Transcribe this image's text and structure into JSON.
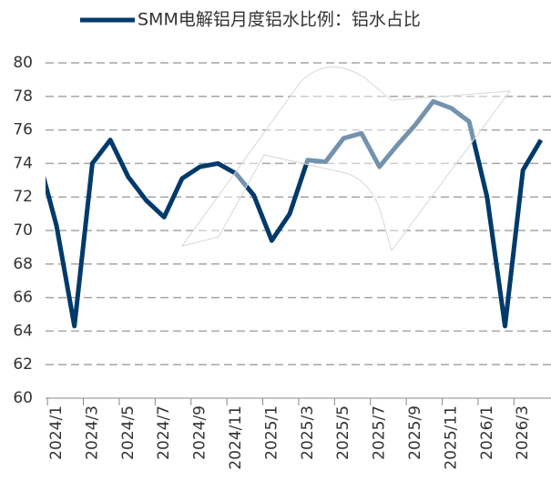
{
  "chart_data": {
    "type": "line",
    "categories": [
      null,
      "2024/1",
      null,
      "2024/3",
      null,
      "2024/5",
      null,
      "2024/7",
      null,
      "2024/9",
      null,
      "2024/11",
      null,
      "2025/1",
      null,
      "2025/3",
      null,
      "2025/5",
      null,
      "2025/7",
      null,
      "2025/9",
      null,
      "2025/11",
      null,
      "2026/1",
      null,
      "2026/3",
      null
    ],
    "series": [
      {
        "name": "SMM电解铝月度铝水比例：铝水占比",
        "color": "#003a6b",
        "values": [
          74.3,
          70.3,
          64.3,
          74.0,
          75.4,
          73.2,
          71.8,
          70.8,
          73.1,
          73.8,
          74.0,
          73.4,
          72.1,
          69.4,
          71.0,
          74.2,
          74.1,
          75.5,
          75.8,
          73.8,
          75.1,
          76.3,
          77.7,
          77.3,
          76.5,
          72.0,
          64.3,
          73.6,
          75.4
        ]
      }
    ],
    "ylim": [
      60,
      80
    ],
    "yticks": [
      60,
      62,
      64,
      66,
      68,
      70,
      72,
      74,
      76,
      78,
      80
    ],
    "grid": true,
    "legend": "top"
  }
}
